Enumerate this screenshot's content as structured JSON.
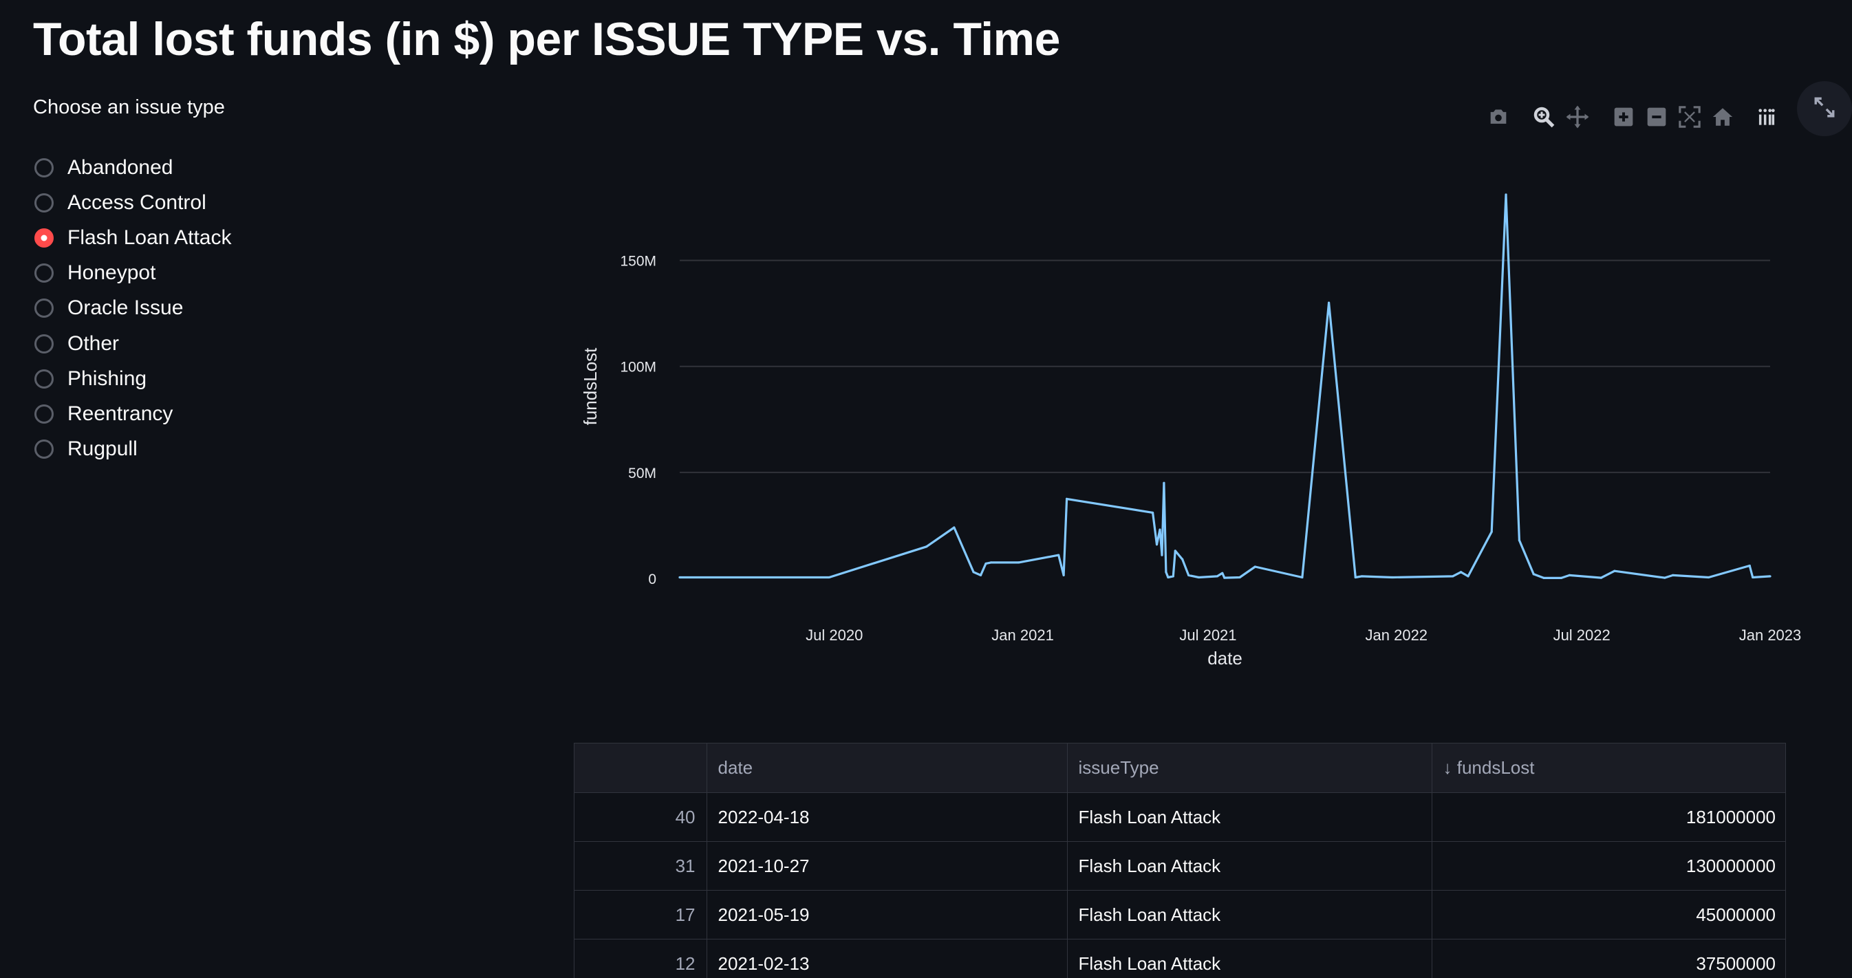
{
  "page": {
    "title": "Total lost funds (in $) per ISSUE TYPE vs. Time"
  },
  "radio": {
    "label": "Choose an issue type",
    "selected_index": 2,
    "options": [
      "Abandoned",
      "Access Control",
      "Flash Loan Attack",
      "Honeypot",
      "Oracle Issue",
      "Other",
      "Phishing",
      "Reentrancy",
      "Rugpull"
    ]
  },
  "toolbar": {
    "icons": [
      "camera-icon",
      "zoom-icon",
      "pan-icon",
      "zoom-in-icon",
      "zoom-out-icon",
      "autoscale-icon",
      "home-icon",
      "plotly-logo-icon"
    ],
    "fullscreen_icon": "expand-icon"
  },
  "chart_data": {
    "type": "line",
    "xlabel": "date",
    "ylabel": "fundsLost",
    "x_range": [
      "2020-02-01",
      "2023-01-01"
    ],
    "ylim": [
      0,
      181000000
    ],
    "x_ticks": [
      "2020-07-01",
      "2021-01-01",
      "2021-07-01",
      "2022-01-01",
      "2022-07-01",
      "2023-01-01"
    ],
    "x_tick_labels": [
      "Jul 2020",
      "Jan 2021",
      "Jul 2021",
      "Jan 2022",
      "Jul 2022",
      "Jan 2023"
    ],
    "y_ticks": [
      0,
      50000000,
      100000000,
      150000000
    ],
    "y_tick_labels": [
      "0",
      "50M",
      "100M",
      "150M"
    ],
    "grid": true,
    "line_color": "#83c9ff",
    "points": [
      {
        "x": "2020-02-01",
        "y": 500000
      },
      {
        "x": "2020-06-26",
        "y": 500000
      },
      {
        "x": "2020-09-29",
        "y": 15000000
      },
      {
        "x": "2020-10-26",
        "y": 24000000
      },
      {
        "x": "2020-11-14",
        "y": 3000000
      },
      {
        "x": "2020-11-21",
        "y": 1500000
      },
      {
        "x": "2020-11-26",
        "y": 7000000
      },
      {
        "x": "2020-12-01",
        "y": 7500000
      },
      {
        "x": "2020-12-28",
        "y": 7500000
      },
      {
        "x": "2021-02-05",
        "y": 11000000
      },
      {
        "x": "2021-02-10",
        "y": 1500000
      },
      {
        "x": "2021-02-13",
        "y": 37500000
      },
      {
        "x": "2021-05-08",
        "y": 31000000
      },
      {
        "x": "2021-05-12",
        "y": 16000000
      },
      {
        "x": "2021-05-15",
        "y": 23000000
      },
      {
        "x": "2021-05-17",
        "y": 11000000
      },
      {
        "x": "2021-05-19",
        "y": 45000000
      },
      {
        "x": "2021-05-21",
        "y": 3000000
      },
      {
        "x": "2021-05-23",
        "y": 500000
      },
      {
        "x": "2021-05-28",
        "y": 1000000
      },
      {
        "x": "2021-05-30",
        "y": 13000000
      },
      {
        "x": "2021-06-06",
        "y": 9000000
      },
      {
        "x": "2021-06-12",
        "y": 1500000
      },
      {
        "x": "2021-06-22",
        "y": 500000
      },
      {
        "x": "2021-07-10",
        "y": 1000000
      },
      {
        "x": "2021-07-15",
        "y": 2500000
      },
      {
        "x": "2021-07-17",
        "y": 300000
      },
      {
        "x": "2021-08-01",
        "y": 500000
      },
      {
        "x": "2021-08-16",
        "y": 5500000
      },
      {
        "x": "2021-10-01",
        "y": 500000
      },
      {
        "x": "2021-10-27",
        "y": 130000000
      },
      {
        "x": "2021-11-22",
        "y": 500000
      },
      {
        "x": "2021-11-28",
        "y": 1000000
      },
      {
        "x": "2021-12-28",
        "y": 500000
      },
      {
        "x": "2022-02-25",
        "y": 1000000
      },
      {
        "x": "2022-03-05",
        "y": 3000000
      },
      {
        "x": "2022-03-12",
        "y": 1000000
      },
      {
        "x": "2022-04-04",
        "y": 22000000
      },
      {
        "x": "2022-04-18",
        "y": 181000000
      },
      {
        "x": "2022-05-01",
        "y": 18000000
      },
      {
        "x": "2022-05-15",
        "y": 2000000
      },
      {
        "x": "2022-05-25",
        "y": 200000
      },
      {
        "x": "2022-06-11",
        "y": 200000
      },
      {
        "x": "2022-06-19",
        "y": 1500000
      },
      {
        "x": "2022-07-20",
        "y": 300000
      },
      {
        "x": "2022-08-02",
        "y": 3500000
      },
      {
        "x": "2022-09-20",
        "y": 300000
      },
      {
        "x": "2022-09-28",
        "y": 1500000
      },
      {
        "x": "2022-11-02",
        "y": 500000
      },
      {
        "x": "2022-12-12",
        "y": 6000000
      },
      {
        "x": "2022-12-15",
        "y": 500000
      },
      {
        "x": "2023-01-01",
        "y": 1000000
      }
    ]
  },
  "table": {
    "headers": [
      "",
      "date",
      "issueType",
      "↓ fundsLost"
    ],
    "rows": [
      [
        "40",
        "2022-04-18",
        "Flash Loan Attack",
        "181000000"
      ],
      [
        "31",
        "2021-10-27",
        "Flash Loan Attack",
        "130000000"
      ],
      [
        "17",
        "2021-05-19",
        "Flash Loan Attack",
        "45000000"
      ],
      [
        "12",
        "2021-02-13",
        "Flash Loan Attack",
        "37500000"
      ]
    ]
  }
}
